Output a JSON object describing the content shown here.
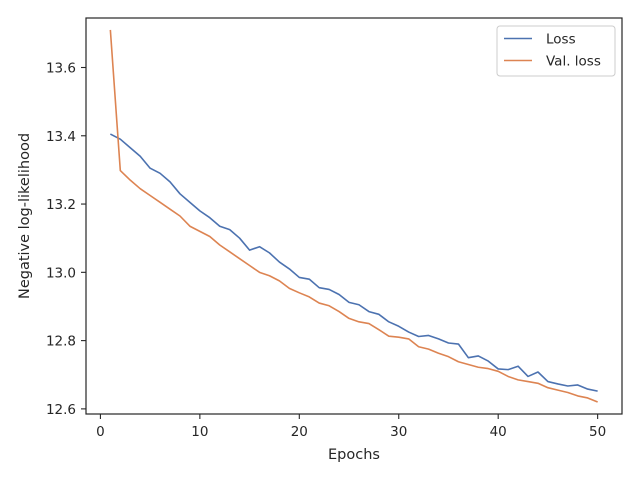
{
  "chart_data": {
    "type": "line",
    "xlabel": "Epochs",
    "ylabel": "Negative log-likelihood",
    "xlim": [
      -1.45,
      52.45
    ],
    "ylim": [
      12.585,
      13.745
    ],
    "xticks": [
      0,
      10,
      20,
      30,
      40,
      50
    ],
    "yticks": [
      12.6,
      12.8,
      13.0,
      13.2,
      13.4,
      13.6
    ],
    "ytick_labels": [
      "12.6",
      "12.8",
      "13.0",
      "13.2",
      "13.4",
      "13.6"
    ],
    "xtick_labels": [
      "0",
      "10",
      "20",
      "30",
      "40",
      "50"
    ],
    "grid": false,
    "legend_position": "top-right",
    "x": [
      1,
      2,
      3,
      4,
      5,
      6,
      7,
      8,
      9,
      10,
      11,
      12,
      13,
      14,
      15,
      16,
      17,
      18,
      19,
      20,
      21,
      22,
      23,
      24,
      25,
      26,
      27,
      28,
      29,
      30,
      31,
      32,
      33,
      34,
      35,
      36,
      37,
      38,
      39,
      40,
      41,
      42,
      43,
      44,
      45,
      46,
      47,
      48,
      49,
      50
    ],
    "series": [
      {
        "name": "Loss",
        "color": "#4c72b0",
        "values": [
          13.405,
          13.39,
          13.365,
          13.34,
          13.305,
          13.29,
          13.265,
          13.23,
          13.205,
          13.18,
          13.16,
          13.135,
          13.125,
          13.1,
          13.065,
          13.075,
          13.057,
          13.03,
          13.01,
          12.985,
          12.98,
          12.955,
          12.95,
          12.935,
          12.912,
          12.905,
          12.885,
          12.877,
          12.855,
          12.842,
          12.825,
          12.812,
          12.815,
          12.805,
          12.793,
          12.79,
          12.75,
          12.755,
          12.74,
          12.717,
          12.715,
          12.725,
          12.695,
          12.708,
          12.68,
          12.673,
          12.667,
          12.67,
          12.658,
          12.652
        ]
      },
      {
        "name": "Val. loss",
        "color": "#dd8452",
        "values": [
          13.71,
          13.298,
          13.27,
          13.245,
          13.225,
          13.205,
          13.185,
          13.165,
          13.135,
          13.12,
          13.105,
          13.08,
          13.06,
          13.04,
          13.02,
          13.0,
          12.99,
          12.975,
          12.953,
          12.94,
          12.928,
          12.91,
          12.902,
          12.885,
          12.865,
          12.855,
          12.85,
          12.832,
          12.813,
          12.81,
          12.805,
          12.782,
          12.775,
          12.763,
          12.753,
          12.738,
          12.73,
          12.722,
          12.718,
          12.71,
          12.695,
          12.685,
          12.68,
          12.675,
          12.662,
          12.655,
          12.648,
          12.638,
          12.632,
          12.62
        ]
      }
    ]
  }
}
